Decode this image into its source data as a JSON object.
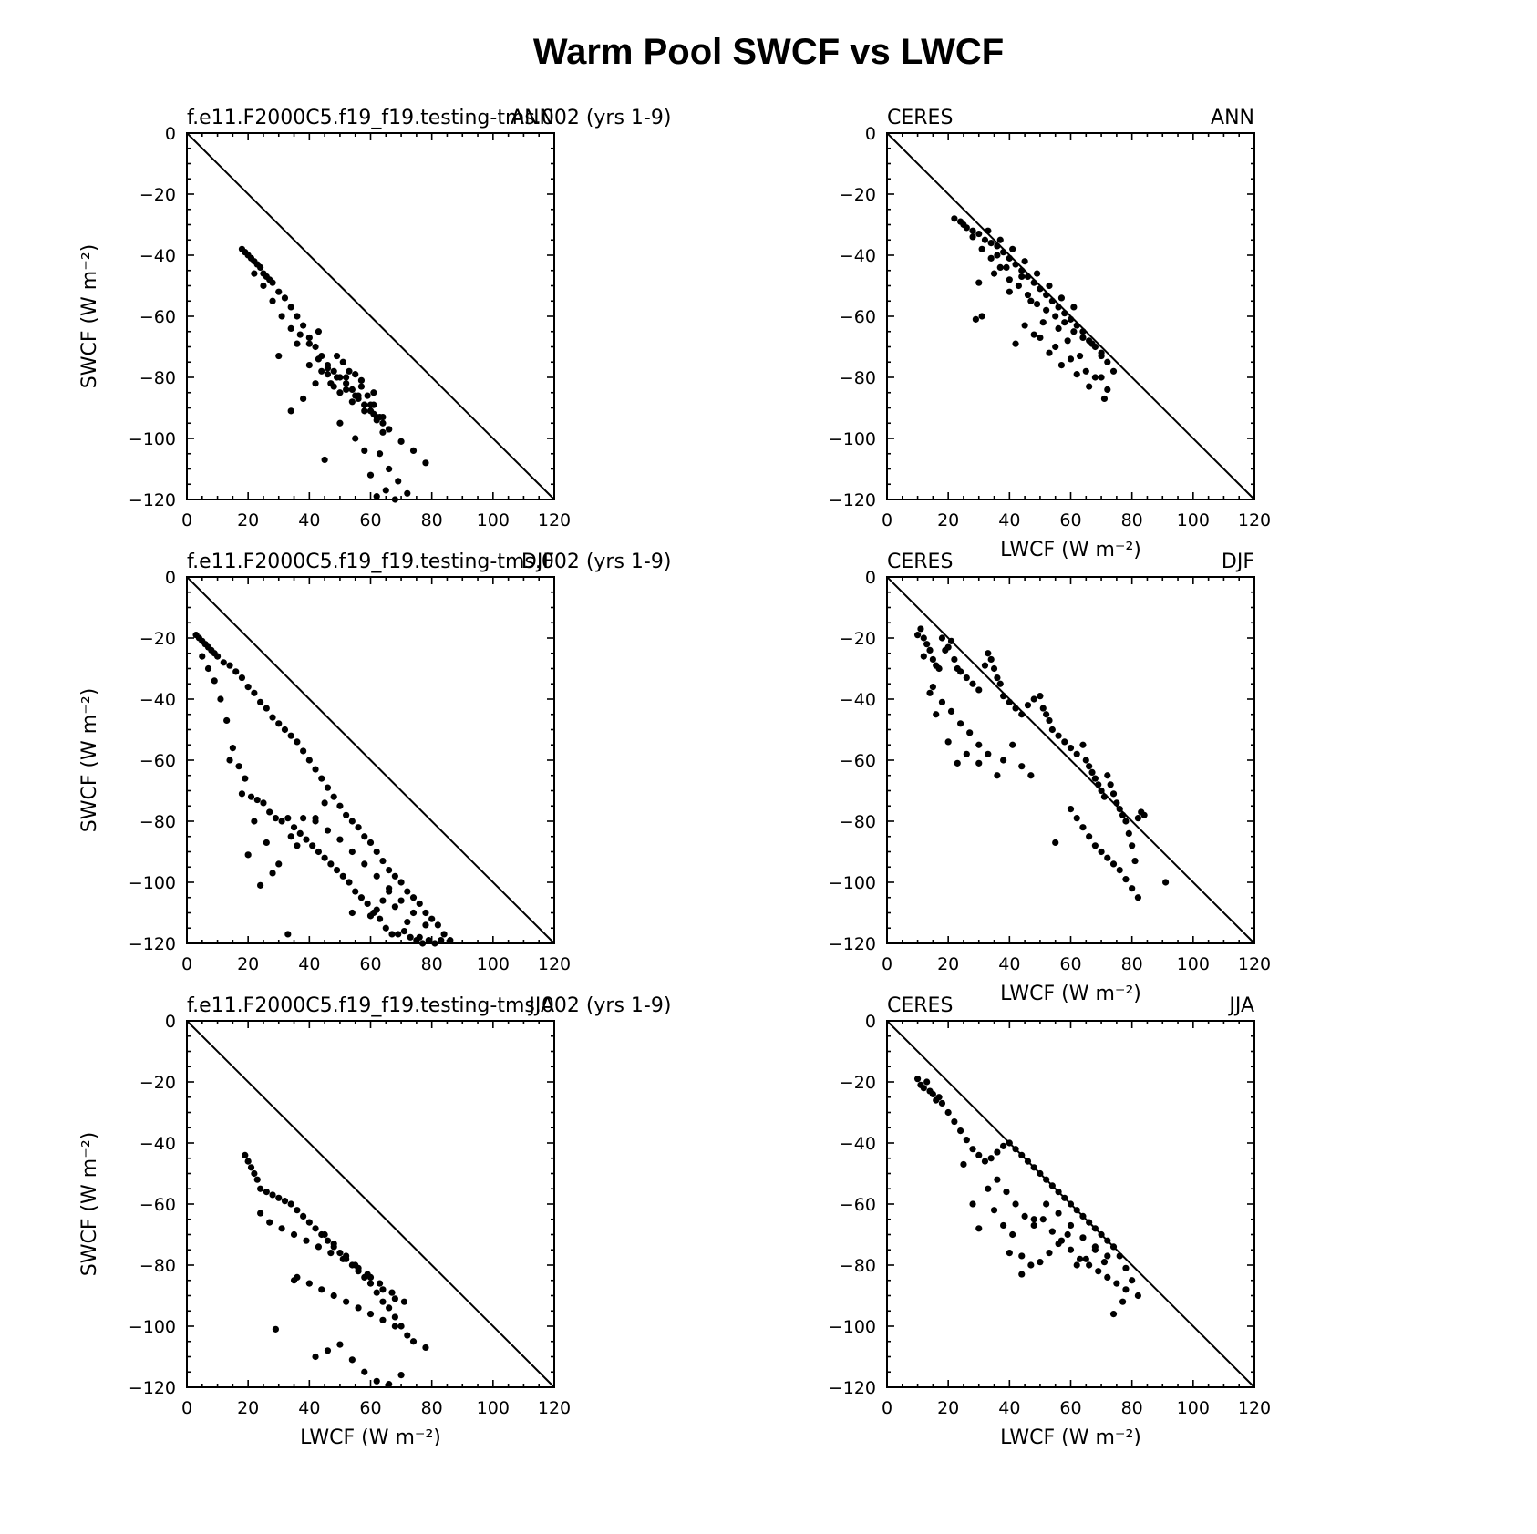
{
  "figure": {
    "title": "Warm Pool SWCF vs LWCF"
  },
  "axes_common": {
    "xlim": [
      0,
      120
    ],
    "ylim": [
      -120,
      0
    ],
    "xticks": [
      0,
      20,
      40,
      60,
      80,
      100,
      120
    ],
    "yticks": [
      0,
      -20,
      -40,
      -60,
      -80,
      -100,
      -120
    ],
    "xlabel": "LWCF (W m⁻²)",
    "ylabel": "SWCF (W m⁻²)",
    "reference_line": "1:1 diagonal from (0,0) to (120,-120)"
  },
  "chart_data": [
    {
      "type": "scatter",
      "panel": "model-ANN",
      "left_title": "f.e11.F2000C5.f19_f19.testing-tms.002 (yrs 1-9)",
      "right_title": "ANN",
      "xlabel": "",
      "ylabel": "SWCF (W m⁻²)",
      "xlim": [
        0,
        120
      ],
      "ylim": [
        -120,
        0
      ],
      "x": [
        18,
        19,
        20,
        21,
        22,
        23,
        24,
        25,
        26,
        27,
        28,
        30,
        32,
        34,
        36,
        38,
        40,
        42,
        44,
        46,
        48,
        50,
        52,
        54,
        56,
        58,
        60,
        62,
        64,
        66,
        22,
        25,
        28,
        31,
        34,
        37,
        40,
        43,
        46,
        49,
        52,
        55,
        58,
        61,
        64,
        34,
        38,
        42,
        46,
        50,
        54,
        58,
        62,
        66,
        70,
        74,
        78,
        60,
        63,
        66,
        69,
        72,
        45,
        50,
        55,
        58,
        62,
        65,
        68,
        48,
        52,
        56,
        60,
        64,
        40,
        44,
        47,
        51,
        55,
        57,
        59,
        61,
        63,
        30,
        36,
        43,
        49,
        53,
        57,
        61
      ],
      "y": [
        -38,
        -39,
        -40,
        -41,
        -42,
        -43,
        -44,
        -46,
        -47,
        -48,
        -49,
        -52,
        -54,
        -57,
        -60,
        -63,
        -67,
        -70,
        -73,
        -76,
        -78,
        -80,
        -82,
        -84,
        -87,
        -89,
        -91,
        -93,
        -95,
        -97,
        -46,
        -50,
        -55,
        -60,
        -64,
        -66,
        -69,
        -74,
        -77,
        -80,
        -84,
        -86,
        -89,
        -92,
        -98,
        -91,
        -87,
        -82,
        -79,
        -85,
        -88,
        -91,
        -94,
        -97,
        -101,
        -104,
        -108,
        -112,
        -105,
        -110,
        -114,
        -118,
        -107,
        -95,
        -100,
        -104,
        -119,
        -117,
        -120,
        -83,
        -80,
        -86,
        -89,
        -93,
        -76,
        -78,
        -82,
        -75,
        -79,
        -83,
        -86,
        -89,
        -93,
        -73,
        -69,
        -65,
        -73,
        -78,
        -81,
        -85
      ],
      "marker": "filled-circle",
      "color": "#000000"
    },
    {
      "type": "scatter",
      "panel": "obs-ANN",
      "left_title": "CERES",
      "right_title": "ANN",
      "xlabel": "LWCF (W m⁻²)",
      "ylabel": "",
      "xlim": [
        0,
        120
      ],
      "ylim": [
        -120,
        0
      ],
      "x": [
        22,
        24,
        26,
        28,
        30,
        32,
        34,
        36,
        38,
        40,
        42,
        44,
        46,
        48,
        50,
        52,
        54,
        56,
        58,
        60,
        62,
        64,
        66,
        68,
        70,
        72,
        74,
        25,
        28,
        31,
        34,
        37,
        40,
        43,
        46,
        49,
        52,
        55,
        58,
        61,
        64,
        67,
        70,
        30,
        35,
        40,
        45,
        50,
        55,
        60,
        65,
        70,
        29,
        31,
        42,
        48,
        53,
        57,
        62,
        66,
        71,
        36,
        39,
        44,
        47,
        51,
        56,
        59,
        63,
        68,
        72,
        33,
        37,
        41,
        45,
        49,
        53,
        57,
        61
      ],
      "y": [
        -28,
        -29,
        -31,
        -32,
        -33,
        -35,
        -36,
        -37,
        -39,
        -41,
        -43,
        -45,
        -47,
        -49,
        -51,
        -53,
        -55,
        -57,
        -59,
        -61,
        -63,
        -65,
        -68,
        -70,
        -73,
        -75,
        -78,
        -30,
        -34,
        -38,
        -41,
        -44,
        -48,
        -50,
        -53,
        -56,
        -58,
        -60,
        -62,
        -65,
        -67,
        -69,
        -72,
        -49,
        -46,
        -52,
        -63,
        -67,
        -70,
        -74,
        -78,
        -80,
        -61,
        -60,
        -69,
        -66,
        -72,
        -76,
        -79,
        -83,
        -87,
        -40,
        -44,
        -47,
        -55,
        -62,
        -64,
        -68,
        -73,
        -80,
        -84,
        -32,
        -35,
        -38,
        -42,
        -46,
        -50,
        -54,
        -57
      ],
      "marker": "filled-circle",
      "color": "#000000"
    },
    {
      "type": "scatter",
      "panel": "model-DJF",
      "left_title": "f.e11.F2000C5.f19_f19.testing-tms.002 (yrs 1-9)",
      "right_title": "DJF",
      "xlabel": "",
      "ylabel": "SWCF (W m⁻²)",
      "xlim": [
        0,
        120
      ],
      "ylim": [
        -120,
        0
      ],
      "x": [
        3,
        4,
        5,
        6,
        7,
        8,
        9,
        10,
        12,
        14,
        16,
        18,
        20,
        22,
        24,
        26,
        28,
        30,
        32,
        34,
        36,
        38,
        40,
        42,
        44,
        46,
        48,
        50,
        52,
        54,
        56,
        58,
        60,
        62,
        64,
        66,
        68,
        70,
        72,
        74,
        76,
        78,
        80,
        82,
        84,
        86,
        5,
        7,
        9,
        11,
        13,
        15,
        17,
        19,
        21,
        23,
        25,
        27,
        29,
        31,
        33,
        35,
        37,
        39,
        41,
        43,
        45,
        47,
        49,
        51,
        53,
        55,
        57,
        59,
        61,
        63,
        65,
        67,
        69,
        71,
        73,
        75,
        77,
        79,
        81,
        83,
        14,
        18,
        22,
        26,
        30,
        34,
        38,
        42,
        46,
        50,
        54,
        58,
        62,
        66,
        70,
        74,
        78,
        20,
        24,
        28,
        33,
        36,
        42,
        45,
        54,
        60,
        62,
        64,
        66,
        68,
        72,
        76
      ],
      "y": [
        -19,
        -20,
        -21,
        -22,
        -23,
        -24,
        -25,
        -26,
        -28,
        -29,
        -31,
        -33,
        -36,
        -38,
        -41,
        -43,
        -46,
        -48,
        -50,
        -52,
        -54,
        -57,
        -60,
        -63,
        -66,
        -69,
        -72,
        -75,
        -78,
        -80,
        -82,
        -85,
        -87,
        -90,
        -93,
        -96,
        -98,
        -100,
        -103,
        -105,
        -107,
        -110,
        -112,
        -114,
        -117,
        -119,
        -26,
        -30,
        -34,
        -40,
        -47,
        -56,
        -62,
        -66,
        -72,
        -73,
        -74,
        -77,
        -79,
        -80,
        -79,
        -82,
        -84,
        -86,
        -88,
        -90,
        -92,
        -94,
        -96,
        -98,
        -100,
        -103,
        -105,
        -107,
        -110,
        -112,
        -115,
        -117,
        -117,
        -116,
        -118,
        -119,
        -120,
        -119,
        -120,
        -119,
        -60,
        -71,
        -80,
        -87,
        -94,
        -85,
        -79,
        -80,
        -83,
        -86,
        -90,
        -94,
        -98,
        -102,
        -106,
        -110,
        -114,
        -91,
        -101,
        -97,
        -117,
        -88,
        -79,
        -74,
        -110,
        -111,
        -109,
        -106,
        -103,
        -108,
        -113,
        -118
      ],
      "marker": "filled-circle",
      "color": "#000000"
    },
    {
      "type": "scatter",
      "panel": "obs-DJF",
      "left_title": "CERES",
      "right_title": "DJF",
      "xlabel": "LWCF (W m⁻²)",
      "ylabel": "",
      "xlim": [
        0,
        120
      ],
      "ylim": [
        -120,
        0
      ],
      "x": [
        10,
        11,
        12,
        13,
        14,
        15,
        16,
        17,
        18,
        19,
        20,
        21,
        22,
        23,
        24,
        26,
        28,
        30,
        32,
        33,
        34,
        35,
        36,
        37,
        38,
        40,
        42,
        44,
        46,
        48,
        50,
        51,
        52,
        53,
        54,
        56,
        58,
        60,
        62,
        64,
        65,
        66,
        67,
        68,
        69,
        70,
        71,
        72,
        73,
        74,
        75,
        76,
        77,
        78,
        79,
        80,
        81,
        82,
        83,
        84,
        12,
        15,
        18,
        21,
        24,
        27,
        30,
        33,
        36,
        38,
        41,
        44,
        47,
        55,
        60,
        62,
        64,
        66,
        68,
        70,
        72,
        74,
        76,
        78,
        80,
        82,
        91,
        14,
        16,
        20,
        23,
        26,
        30
      ],
      "y": [
        -19,
        -17,
        -20,
        -22,
        -24,
        -27,
        -29,
        -30,
        -20,
        -24,
        -23,
        -21,
        -27,
        -30,
        -31,
        -33,
        -35,
        -37,
        -29,
        -25,
        -27,
        -30,
        -33,
        -35,
        -39,
        -41,
        -43,
        -45,
        -42,
        -40,
        -39,
        -43,
        -45,
        -47,
        -50,
        -52,
        -54,
        -56,
        -58,
        -55,
        -60,
        -62,
        -64,
        -66,
        -68,
        -70,
        -72,
        -65,
        -68,
        -71,
        -74,
        -76,
        -78,
        -80,
        -84,
        -88,
        -93,
        -79,
        -77,
        -78,
        -26,
        -36,
        -41,
        -44,
        -48,
        -51,
        -55,
        -58,
        -65,
        -60,
        -55,
        -62,
        -65,
        -87,
        -76,
        -79,
        -82,
        -85,
        -88,
        -90,
        -92,
        -94,
        -96,
        -99,
        -102,
        -105,
        -100,
        -38,
        -45,
        -54,
        -61,
        -58,
        -61
      ],
      "marker": "filled-circle",
      "color": "#000000"
    },
    {
      "type": "scatter",
      "panel": "model-JJA",
      "left_title": "f.e11.F2000C5.f19_f19.testing-tms.002 (yrs 1-9)",
      "right_title": "JJA",
      "xlabel": "LWCF (W m⁻²)",
      "ylabel": "SWCF (W m⁻²)",
      "xlim": [
        0,
        120
      ],
      "ylim": [
        -120,
        0
      ],
      "x": [
        19,
        20,
        21,
        22,
        23,
        24,
        26,
        28,
        30,
        32,
        34,
        36,
        38,
        40,
        42,
        44,
        46,
        48,
        50,
        52,
        54,
        56,
        58,
        60,
        62,
        64,
        66,
        68,
        70,
        72,
        74,
        78,
        24,
        27,
        31,
        35,
        39,
        43,
        47,
        51,
        55,
        59,
        63,
        67,
        71,
        36,
        40,
        44,
        48,
        52,
        56,
        60,
        64,
        68,
        29,
        35,
        42,
        46,
        50,
        54,
        58,
        62,
        66,
        70,
        45,
        48,
        52,
        56,
        60,
        64,
        68
      ],
      "y": [
        -44,
        -46,
        -48,
        -50,
        -52,
        -55,
        -56,
        -57,
        -58,
        -59,
        -60,
        -62,
        -64,
        -66,
        -68,
        -70,
        -72,
        -74,
        -76,
        -78,
        -80,
        -82,
        -84,
        -86,
        -89,
        -92,
        -94,
        -97,
        -100,
        -103,
        -105,
        -107,
        -63,
        -66,
        -68,
        -70,
        -72,
        -74,
        -76,
        -78,
        -80,
        -83,
        -86,
        -89,
        -92,
        -84,
        -86,
        -88,
        -90,
        -92,
        -94,
        -96,
        -98,
        -100,
        -101,
        -85,
        -110,
        -108,
        -106,
        -111,
        -115,
        -118,
        -119,
        -116,
        -70,
        -73,
        -77,
        -81,
        -84,
        -88,
        -91
      ],
      "marker": "filled-circle",
      "color": "#000000"
    },
    {
      "type": "scatter",
      "panel": "obs-JJA",
      "left_title": "CERES",
      "right_title": "JJA",
      "xlabel": "LWCF (W m⁻²)",
      "ylabel": "",
      "xlim": [
        0,
        120
      ],
      "ylim": [
        -120,
        0
      ],
      "x": [
        10,
        11,
        12,
        13,
        14,
        15,
        16,
        17,
        18,
        20,
        22,
        24,
        26,
        28,
        30,
        32,
        34,
        36,
        38,
        40,
        42,
        44,
        46,
        48,
        50,
        52,
        54,
        56,
        58,
        60,
        62,
        64,
        66,
        68,
        70,
        72,
        74,
        76,
        78,
        80,
        82,
        25,
        28,
        30,
        33,
        36,
        39,
        42,
        45,
        48,
        51,
        54,
        57,
        60,
        63,
        66,
        69,
        72,
        75,
        78,
        35,
        38,
        41,
        44,
        47,
        50,
        53,
        56,
        59,
        62,
        65,
        68,
        71,
        74,
        77,
        40,
        44,
        48,
        52,
        56,
        60,
        64,
        68,
        72
      ],
      "y": [
        -19,
        -21,
        -22,
        -20,
        -23,
        -24,
        -26,
        -25,
        -27,
        -30,
        -33,
        -36,
        -39,
        -42,
        -44,
        -46,
        -45,
        -43,
        -41,
        -40,
        -42,
        -44,
        -46,
        -48,
        -50,
        -52,
        -54,
        -56,
        -58,
        -60,
        -62,
        -64,
        -66,
        -68,
        -70,
        -72,
        -74,
        -77,
        -81,
        -85,
        -90,
        -47,
        -60,
        -68,
        -55,
        -52,
        -56,
        -60,
        -64,
        -67,
        -65,
        -69,
        -72,
        -75,
        -78,
        -80,
        -82,
        -84,
        -86,
        -88,
        -62,
        -67,
        -70,
        -77,
        -80,
        -79,
        -76,
        -73,
        -70,
        -80,
        -78,
        -75,
        -79,
        -96,
        -92,
        -76,
        -83,
        -65,
        -60,
        -63,
        -67,
        -71,
        -74,
        -77
      ],
      "marker": "filled-circle",
      "color": "#000000"
    }
  ]
}
